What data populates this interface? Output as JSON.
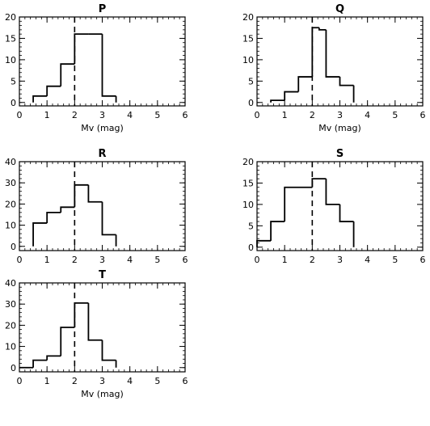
{
  "chart_data": [
    {
      "type": "bar",
      "title": "P",
      "xlabel": "Mv (mag)",
      "ylabel": "",
      "xlim": [
        0,
        6
      ],
      "ylim": [
        -0.8,
        20
      ],
      "xticks": [
        0,
        1,
        2,
        3,
        4,
        5,
        6
      ],
      "yticks": [
        0,
        5,
        10,
        15,
        20
      ],
      "bin_edges": [
        0.5,
        1.0,
        1.5,
        2.0,
        2.5,
        3.0,
        3.5
      ],
      "values": [
        1.5,
        3.8,
        9.0,
        16.0,
        16.0,
        1.5
      ],
      "reference_line_x": 2
    },
    {
      "type": "bar",
      "title": "Q",
      "xlabel": "Mv (mag)",
      "ylabel": "",
      "xlim": [
        0,
        6
      ],
      "ylim": [
        -0.8,
        20
      ],
      "xticks": [
        0,
        1,
        2,
        3,
        4,
        5,
        6
      ],
      "yticks": [
        0,
        5,
        10,
        15,
        20
      ],
      "bin_edges": [
        0.5,
        1.0,
        1.5,
        2.0,
        2.25,
        2.5,
        3.0,
        3.5
      ],
      "values": [
        0.5,
        2.5,
        6.0,
        17.5,
        17.0,
        6.0,
        4.0
      ],
      "reference_line_x": 2
    },
    {
      "type": "bar",
      "title": "R",
      "xlabel": "",
      "ylabel": "",
      "xlim": [
        0,
        6
      ],
      "ylim": [
        -2,
        40
      ],
      "xticks": [
        0,
        1,
        2,
        3,
        4,
        5,
        6
      ],
      "yticks": [
        0,
        10,
        20,
        30,
        40
      ],
      "bin_edges": [
        0.5,
        1.0,
        1.5,
        2.0,
        2.5,
        3.0,
        3.5
      ],
      "values": [
        11,
        16,
        18.5,
        29,
        21,
        5.5
      ],
      "reference_line_x": 2
    },
    {
      "type": "bar",
      "title": "S",
      "xlabel": "",
      "ylabel": "",
      "xlim": [
        0,
        6
      ],
      "ylim": [
        -0.8,
        20
      ],
      "xticks": [
        0,
        1,
        2,
        3,
        4,
        5,
        6
      ],
      "yticks": [
        0,
        5,
        10,
        15,
        20
      ],
      "bin_edges": [
        0.0,
        0.5,
        1.0,
        2.0,
        2.5,
        3.0,
        3.5
      ],
      "values": [
        1.5,
        6.0,
        14.0,
        16.0,
        10.0,
        6.0
      ],
      "reference_line_x": 2
    },
    {
      "type": "bar",
      "title": "T",
      "xlabel": "Mv (mag)",
      "ylabel": "",
      "xlim": [
        0,
        6
      ],
      "ylim": [
        -2,
        40
      ],
      "xticks": [
        0,
        1,
        2,
        3,
        4,
        5,
        6
      ],
      "yticks": [
        0,
        10,
        20,
        30,
        40
      ],
      "bin_edges": [
        0.0,
        0.5,
        1.0,
        1.5,
        2.0,
        2.5,
        3.0,
        3.5
      ],
      "values": [
        0,
        3.5,
        5.5,
        19,
        30.5,
        13,
        3.5
      ],
      "reference_line_x": 2
    }
  ]
}
